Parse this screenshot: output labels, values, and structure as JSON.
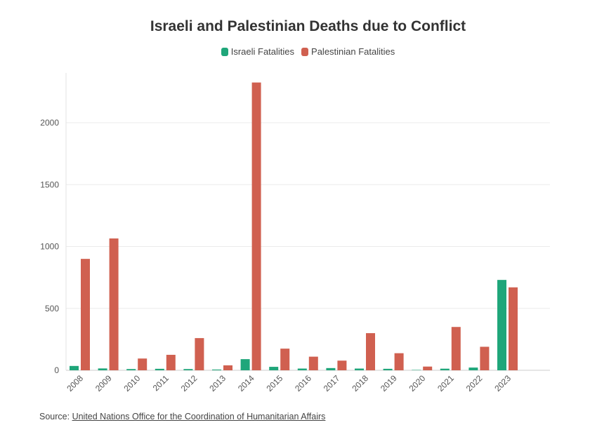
{
  "chart_data": {
    "type": "bar",
    "title": "Israeli and Palestinian Deaths due to Conflict",
    "categories": [
      "2008",
      "2009",
      "2010",
      "2011",
      "2012",
      "2013",
      "2014",
      "2015",
      "2016",
      "2017",
      "2018",
      "2019",
      "2020",
      "2021",
      "2022",
      "2023"
    ],
    "series": [
      {
        "name": "Israeli Fatalities",
        "color": "#1fa67a",
        "values": [
          35,
          15,
          10,
          12,
          10,
          6,
          90,
          28,
          14,
          18,
          14,
          12,
          3,
          13,
          22,
          730
        ]
      },
      {
        "name": "Palestinian Fatalities",
        "color": "#d06050",
        "values": [
          900,
          1065,
          95,
          125,
          260,
          40,
          2325,
          175,
          110,
          78,
          300,
          138,
          30,
          350,
          190,
          670
        ]
      }
    ],
    "yticks": [
      0,
      500,
      1000,
      1500,
      2000
    ],
    "ylim": [
      0,
      2400
    ],
    "xlabel": "",
    "ylabel": "",
    "grid": true,
    "legend": "top-center"
  },
  "source": {
    "prefix": "Source: ",
    "link_text": "United Nations Office for the Coordination of Humanitarian Affairs"
  }
}
